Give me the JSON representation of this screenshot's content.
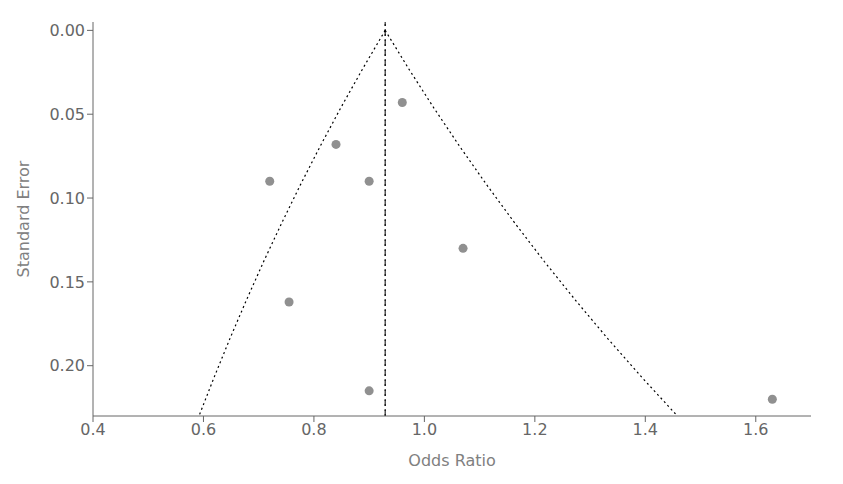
{
  "chart_data": {
    "type": "scatter",
    "title": "",
    "xlabel": "Odds Ratio",
    "ylabel": "Standard Error",
    "xlim": [
      0.4,
      1.7
    ],
    "ylim": [
      0.23,
      -0.005
    ],
    "xticks": [
      0.4,
      0.6,
      0.8,
      {
        "value": 1.0,
        "label": "1.0"
      },
      1.2,
      1.4,
      1.6
    ],
    "yticks": [
      {
        "value": 0.0,
        "label": "0.00"
      },
      0.05,
      {
        "value": 0.1,
        "label": "0.10"
      },
      0.15,
      {
        "value": 0.2,
        "label": "0.20"
      }
    ],
    "grid": false,
    "points": {
      "x": [
        0.72,
        0.84,
        0.9,
        0.96,
        0.9,
        1.07,
        1.63,
        0.755
      ],
      "y": [
        0.09,
        0.068,
        0.09,
        0.043,
        0.215,
        0.13,
        0.22,
        0.162
      ],
      "color": "#909090",
      "marker": "circle"
    },
    "funnel": {
      "color": "#000000",
      "line_style": "dotted",
      "left": {
        "x": [
          0.929,
          0.8881,
          0.8489,
          0.8115,
          0.7757,
          0.7415,
          0.7088,
          0.6776,
          0.6477,
          0.6192,
          0.5919
        ],
        "y": [
          0.0,
          0.023,
          0.046,
          0.069,
          0.092,
          0.115,
          0.138,
          0.161,
          0.184,
          0.207,
          0.23
        ]
      },
      "right": {
        "x": [
          0.929,
          0.9718,
          1.0166,
          1.0635,
          1.1126,
          1.1639,
          1.2175,
          1.2737,
          1.3324,
          1.3939,
          1.4581
        ],
        "y": [
          0.0,
          0.023,
          0.046,
          0.069,
          0.092,
          0.115,
          0.138,
          0.161,
          0.184,
          0.207,
          0.23
        ]
      }
    },
    "reference_lines": [
      {
        "x": 0.929,
        "line_style": "dotted",
        "color": "#000000"
      },
      {
        "x": 0.929,
        "line_style": "dashed",
        "color": "#000000"
      }
    ]
  }
}
